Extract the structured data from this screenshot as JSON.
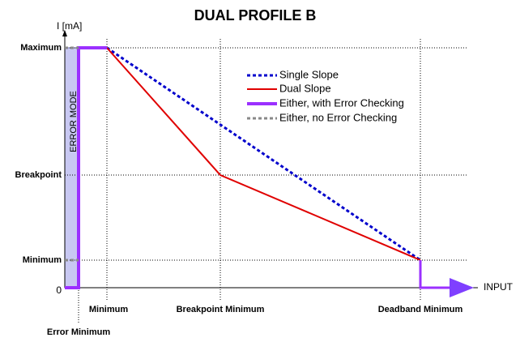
{
  "title": "DUAL PROFILE B",
  "y_axis": {
    "label": "I [mA]",
    "levels": [
      "Maximum",
      "Breakpoint",
      "Minimum",
      "0"
    ]
  },
  "x_axis": {
    "label": "INPUT",
    "levels": [
      "Minimum",
      "Breakpoint Minimum",
      "Deadband Minimum",
      "Error Minimum"
    ]
  },
  "region_label": "ERROR MODE",
  "legend": [
    "Single Slope",
    "Dual Slope",
    "Either, with Error Checking",
    "Either, no Error Checking"
  ]
}
